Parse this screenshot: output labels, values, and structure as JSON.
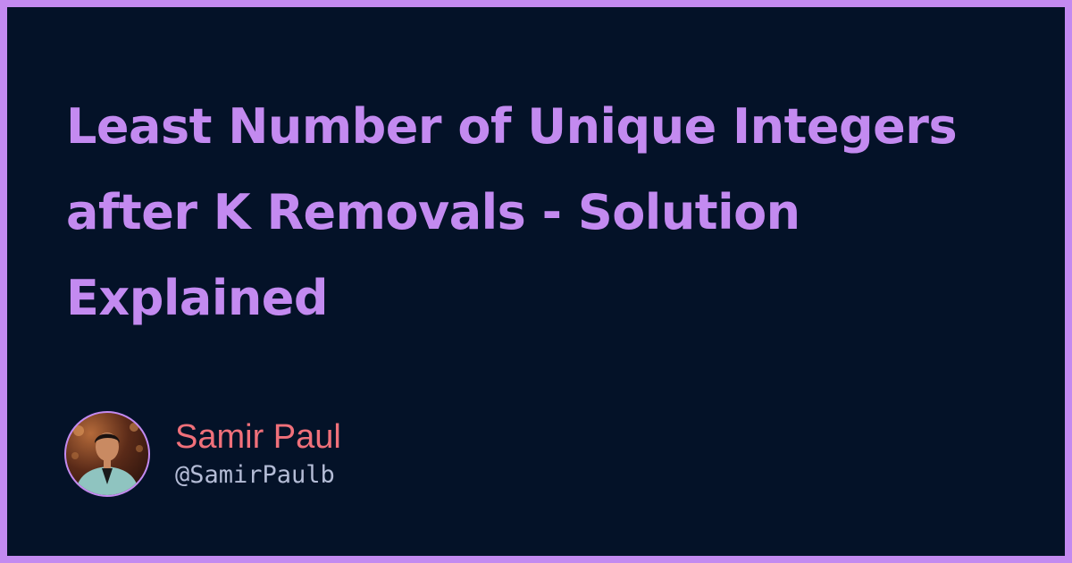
{
  "title": "Least Number of Unique Integers after K Removals - Solution Explained",
  "author": {
    "name": "Samir Paul",
    "handle": "@SamirPaulb"
  },
  "colors": {
    "frame": "#c38af0",
    "background": "#041228",
    "title": "#c38af0",
    "author_name": "#f0707a",
    "author_handle": "#b4bcd6"
  }
}
